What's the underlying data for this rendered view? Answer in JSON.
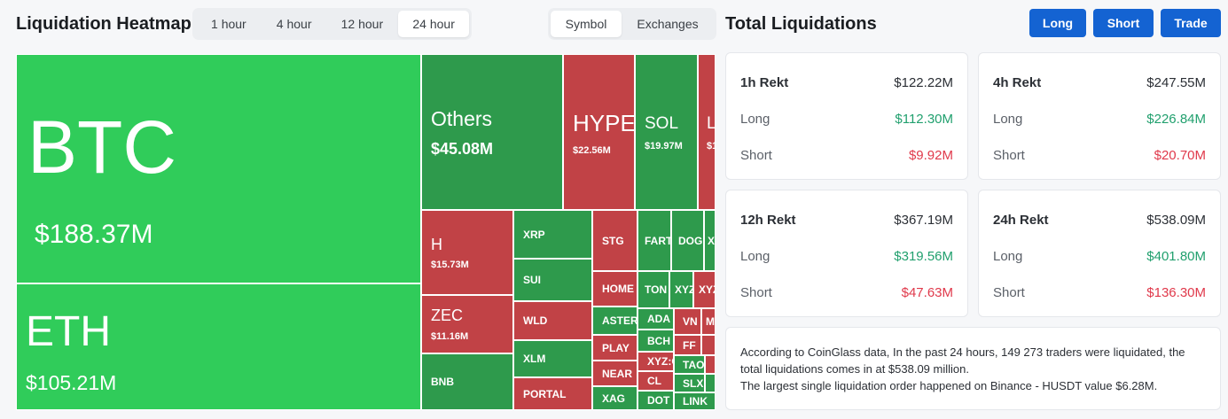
{
  "header": {
    "title": "Liquidation Heatmap",
    "time_tabs": [
      {
        "label": "1 hour",
        "active": false
      },
      {
        "label": "4 hour",
        "active": false
      },
      {
        "label": "12 hour",
        "active": false
      },
      {
        "label": "24 hour",
        "active": true
      }
    ],
    "type_tabs": [
      {
        "label": "Symbol",
        "active": true
      },
      {
        "label": "Exchanges",
        "active": false
      }
    ]
  },
  "colors": {
    "long_green": "#30cc5a",
    "dark_green": "#2e9a4c",
    "red": "#c14246"
  },
  "heatmap": {
    "tiles": [
      {
        "symbol": "BTC",
        "value": "$188.37M"
      },
      {
        "symbol": "ETH",
        "value": "$105.21M"
      },
      {
        "symbol": "Others",
        "value": "$45.08M"
      },
      {
        "symbol": "HYPE",
        "value": "$22.56M"
      },
      {
        "symbol": "SOL",
        "value": "$19.97M"
      },
      {
        "symbol": "L",
        "value": "$1"
      },
      {
        "symbol": "H",
        "value": "$15.73M"
      },
      {
        "symbol": "ZEC",
        "value": "$11.16M"
      },
      {
        "symbol": "BNB",
        "value": ""
      },
      {
        "symbol": "XRP",
        "value": ""
      },
      {
        "symbol": "SUI",
        "value": ""
      },
      {
        "symbol": "WLD",
        "value": ""
      },
      {
        "symbol": "XLM",
        "value": ""
      },
      {
        "symbol": "PORTAL",
        "value": ""
      },
      {
        "symbol": "STG",
        "value": ""
      },
      {
        "symbol": "HOME",
        "value": ""
      },
      {
        "symbol": "ASTER",
        "value": ""
      },
      {
        "symbol": "PLAY",
        "value": ""
      },
      {
        "symbol": "NEAR",
        "value": ""
      },
      {
        "symbol": "XAG",
        "value": ""
      },
      {
        "symbol": "FART",
        "value": ""
      },
      {
        "symbol": "DOGE",
        "value": ""
      },
      {
        "symbol": "X",
        "value": ""
      },
      {
        "symbol": "TON",
        "value": ""
      },
      {
        "symbol": "XYZ",
        "value": ""
      },
      {
        "symbol": "XYZ",
        "value": ""
      },
      {
        "symbol": "ADA",
        "value": ""
      },
      {
        "symbol": "BCH",
        "value": ""
      },
      {
        "symbol": "XYZ:G",
        "value": ""
      },
      {
        "symbol": "CL",
        "value": ""
      },
      {
        "symbol": "DOT",
        "value": ""
      },
      {
        "symbol": "VN",
        "value": ""
      },
      {
        "symbol": "M",
        "value": ""
      },
      {
        "symbol": "FF",
        "value": ""
      },
      {
        "symbol": "TAO",
        "value": ""
      },
      {
        "symbol": "SLX",
        "value": ""
      },
      {
        "symbol": "LINK",
        "value": ""
      }
    ]
  },
  "total_liquidations": {
    "title": "Total Liquidations",
    "buttons": [
      "Long",
      "Short",
      "Trade"
    ],
    "cards": [
      {
        "period": "1h Rekt",
        "total": "$122.22M",
        "long_label": "Long",
        "long": "$112.30M",
        "short_label": "Short",
        "short": "$9.92M"
      },
      {
        "period": "4h Rekt",
        "total": "$247.55M",
        "long_label": "Long",
        "long": "$226.84M",
        "short_label": "Short",
        "short": "$20.70M"
      },
      {
        "period": "12h Rekt",
        "total": "$367.19M",
        "long_label": "Long",
        "long": "$319.56M",
        "short_label": "Short",
        "short": "$47.63M"
      },
      {
        "period": "24h Rekt",
        "total": "$538.09M",
        "long_label": "Long",
        "long": "$401.80M",
        "short_label": "Short",
        "short": "$136.30M"
      }
    ],
    "summary_lines": [
      "According to CoinGlass data, In the past 24 hours, 149 273 traders were liquidated, the total liquidations comes in at $538.09 million.",
      "The largest single liquidation order happened on Binance - HUSDT value $6.28M."
    ]
  }
}
